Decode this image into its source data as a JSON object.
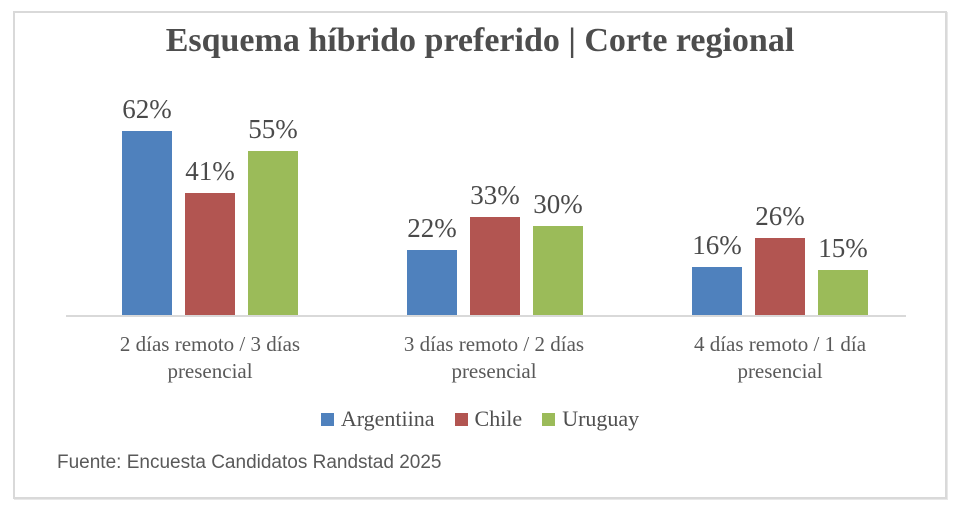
{
  "title": "Esquema híbrido preferido | Corte regional",
  "chart_data": {
    "type": "bar",
    "title": "Esquema híbrido preferido | Corte regional",
    "categories": [
      "2 días remoto / 3 días presencial",
      "3 días remoto / 2 días presencial",
      "4 días remoto / 1 día presencial"
    ],
    "categories_lines": [
      [
        "2 días remoto / 3 días",
        "presencial"
      ],
      [
        "3 días remoto / 2 días",
        "presencial"
      ],
      [
        "4 días remoto / 1 día",
        "presencial"
      ]
    ],
    "series": [
      {
        "name": "Argentiina",
        "color": "#4f81bd",
        "values": [
          62,
          22,
          16
        ]
      },
      {
        "name": "Chile",
        "color": "#b25551",
        "values": [
          41,
          33,
          26
        ]
      },
      {
        "name": "Uruguay",
        "color": "#9bbb59",
        "values": [
          55,
          30,
          15
        ]
      }
    ],
    "data_label_suffix": "%",
    "ylim": [
      0,
      74
    ],
    "xlabel": "",
    "ylabel": "",
    "grid": false,
    "legend_position": "bottom",
    "axis_line_color": "#d9d9d9",
    "label_color": "#4a4a4a"
  },
  "footer": {
    "source_text": "Fuente: Encuesta Candidatos Randstad 2025"
  }
}
